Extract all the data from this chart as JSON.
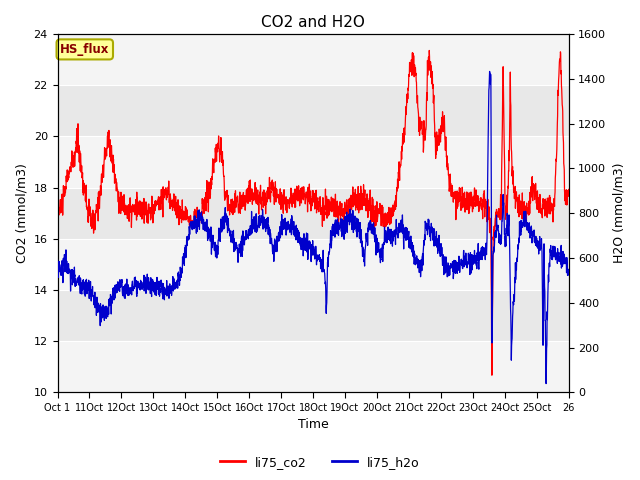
{
  "title": "CO2 and H2O",
  "xlabel": "Time",
  "ylabel_left": "CO2 (mmol/m3)",
  "ylabel_right": "H2O (mmol/m3)",
  "ylim_left": [
    10,
    24
  ],
  "ylim_right": [
    0,
    1600
  ],
  "yticks_left": [
    10,
    12,
    14,
    16,
    18,
    20,
    22,
    24
  ],
  "yticks_right": [
    0,
    200,
    400,
    600,
    800,
    1000,
    1200,
    1400,
    1600
  ],
  "xtick_labels": [
    "Oct 1",
    "11Oct",
    "12Oct",
    "13Oct",
    "14Oct",
    "15Oct",
    "16Oct",
    "17Oct",
    "18Oct",
    "19Oct",
    "20Oct",
    "21Oct",
    "22Oct",
    "23Oct",
    "24Oct",
    "25Oct",
    "26"
  ],
  "co2_color": "#ff0000",
  "h2o_color": "#0000cc",
  "background_color": "#ffffff",
  "bg_axes_color": "#e8e8e8",
  "white_band_color": "#ffffff",
  "legend_label_co2": "li75_co2",
  "legend_label_h2o": "li75_h2o",
  "hs_flux_label": "HS_flux",
  "hs_flux_bg": "#ffff99",
  "hs_flux_border": "#aaaa00",
  "hs_flux_text_color": "#880000",
  "figsize": [
    6.4,
    4.8
  ],
  "dpi": 100
}
